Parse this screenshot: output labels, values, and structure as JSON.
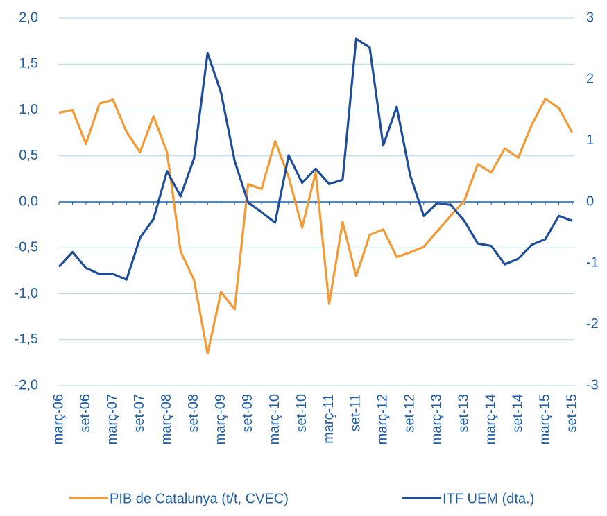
{
  "chart_data": {
    "type": "line",
    "categories": [
      "març-06",
      null,
      "set-06",
      null,
      "març-07",
      null,
      "set-07",
      null,
      "març-08",
      null,
      "set-08",
      null,
      "març-09",
      null,
      "set-09",
      null,
      "març-10",
      null,
      "set-10",
      null,
      "març-11",
      null,
      "set-11",
      null,
      "març-12",
      null,
      "set-12",
      null,
      "març-13",
      null,
      "set-13",
      null,
      "març-14",
      null,
      "set-14",
      null,
      "març-15",
      null,
      "set-15"
    ],
    "series": [
      {
        "name": "PIB de Catalunya (t/t, CVEC)",
        "color": "#f39a35",
        "axis": "y",
        "values": [
          0.97,
          1.0,
          0.63,
          1.07,
          1.11,
          0.76,
          0.54,
          0.93,
          0.54,
          -0.54,
          -0.85,
          -1.65,
          -0.98,
          -1.17,
          0.19,
          0.14,
          0.66,
          0.27,
          -0.28,
          0.32,
          -1.11,
          -0.22,
          -0.81,
          -0.36,
          -0.3,
          -0.6,
          -0.55,
          -0.49,
          -0.32,
          -0.15,
          0.01,
          0.41,
          0.32,
          0.58,
          0.48,
          0.84,
          1.12,
          1.02,
          0.75
        ]
      },
      {
        "name": "ITF UEM (dta.)",
        "color": "#1f4e99",
        "axis": "y2",
        "values": [
          -1.06,
          -0.82,
          -1.08,
          -1.18,
          -1.18,
          -1.27,
          -0.59,
          -0.28,
          0.5,
          0.09,
          0.71,
          2.43,
          1.78,
          0.67,
          -0.01,
          -0.17,
          -0.34,
          0.76,
          0.31,
          0.54,
          0.29,
          0.36,
          2.66,
          2.52,
          0.92,
          1.55,
          0.43,
          -0.23,
          -0.02,
          -0.05,
          -0.31,
          -0.68,
          -0.72,
          -1.02,
          -0.93,
          -0.7,
          -0.61,
          -0.23,
          -0.31
        ]
      }
    ],
    "ylim": [
      -2,
      2
    ],
    "yticks": [
      {
        "value": 2,
        "label": "2,0"
      },
      {
        "value": 1.5,
        "label": "1,5"
      },
      {
        "value": 1,
        "label": "1,0"
      },
      {
        "value": 0.5,
        "label": "0,5"
      },
      {
        "value": 0,
        "label": "0,0"
      },
      {
        "value": -0.5,
        "label": "-0,5"
      },
      {
        "value": -1,
        "label": "-1,0"
      },
      {
        "value": -1.5,
        "label": "-1,5"
      },
      {
        "value": -2,
        "label": "-2,0"
      }
    ],
    "y2lim": [
      -3,
      3
    ],
    "y2ticks": [
      3,
      2,
      1,
      0,
      -1,
      -2,
      -3
    ],
    "grid": true,
    "legend": "bottom"
  }
}
